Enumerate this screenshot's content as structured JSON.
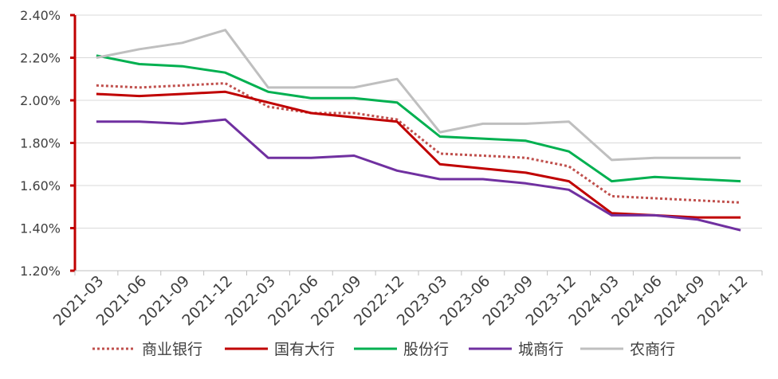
{
  "chart_data": {
    "type": "line",
    "title": "",
    "xlabel": "",
    "ylabel": "",
    "x": [
      "2021-03",
      "2021-06",
      "2021-09",
      "2021-12",
      "2022-03",
      "2022-06",
      "2022-09",
      "2022-12",
      "2023-03",
      "2023-06",
      "2023-09",
      "2023-12",
      "2024-03",
      "2024-06",
      "2024-09",
      "2024-12"
    ],
    "ylim": [
      1.2,
      2.4
    ],
    "yticks": [
      1.2,
      1.4,
      1.6,
      1.8,
      2.0,
      2.2,
      2.4
    ],
    "ytick_labels": [
      "1.20%",
      "1.40%",
      "1.60%",
      "1.80%",
      "2.00%",
      "2.20%",
      "2.40%"
    ],
    "grid": true,
    "legend_position": "bottom",
    "series": [
      {
        "name": "商业银行",
        "color": "#c0504d",
        "style": "dotted",
        "values": [
          2.07,
          2.06,
          2.07,
          2.08,
          1.97,
          1.94,
          1.94,
          1.91,
          1.75,
          1.74,
          1.73,
          1.69,
          1.55,
          1.54,
          1.53,
          1.52
        ]
      },
      {
        "name": "国有大行",
        "color": "#c00000",
        "style": "solid",
        "values": [
          2.03,
          2.02,
          2.03,
          2.04,
          1.99,
          1.94,
          1.92,
          1.9,
          1.7,
          1.68,
          1.66,
          1.62,
          1.47,
          1.46,
          1.45,
          1.45
        ]
      },
      {
        "name": "股份行",
        "color": "#00b050",
        "style": "solid",
        "values": [
          2.21,
          2.17,
          2.16,
          2.13,
          2.04,
          2.01,
          2.01,
          1.99,
          1.83,
          1.82,
          1.81,
          1.76,
          1.62,
          1.64,
          1.63,
          1.62
        ]
      },
      {
        "name": "城商行",
        "color": "#7030a0",
        "style": "solid",
        "values": [
          1.9,
          1.9,
          1.89,
          1.91,
          1.73,
          1.73,
          1.74,
          1.67,
          1.63,
          1.63,
          1.61,
          1.58,
          1.46,
          1.46,
          1.44,
          1.39
        ]
      },
      {
        "name": "农商行",
        "color": "#bfbfbf",
        "style": "solid",
        "values": [
          2.2,
          2.24,
          2.27,
          2.33,
          2.06,
          2.06,
          2.06,
          2.1,
          1.85,
          1.89,
          1.89,
          1.9,
          1.72,
          1.73,
          1.73,
          1.73
        ]
      }
    ]
  }
}
